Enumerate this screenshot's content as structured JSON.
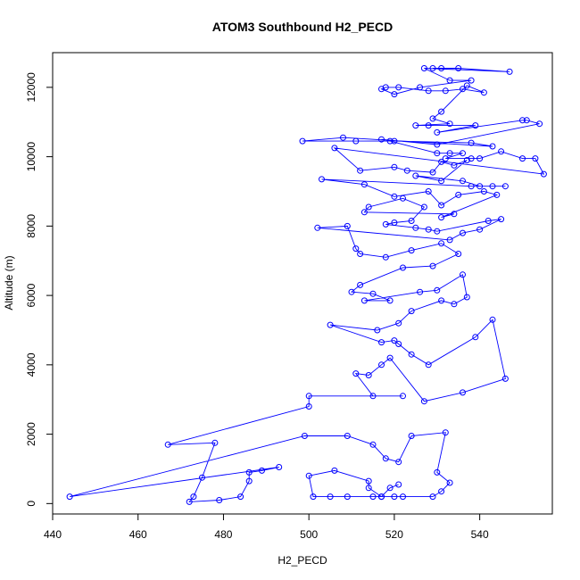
{
  "chart_data": {
    "type": "line",
    "title": "ATOM3 Southbound H2_PECD",
    "xlabel": "H2_PECD",
    "ylabel": "Altitude (m)",
    "xlim": [
      440,
      557
    ],
    "ylim": [
      -300,
      13000
    ],
    "x_ticks": [
      440,
      460,
      480,
      500,
      520,
      540
    ],
    "y_ticks": [
      0,
      2000,
      4000,
      6000,
      8000,
      10000,
      12000
    ],
    "series_color": "#0000ff",
    "marker": "open-circle",
    "grid": false,
    "legend": "none",
    "series": [
      {
        "points": [
          [
            529,
            12550
          ],
          [
            531,
            12550
          ],
          [
            535,
            12550
          ],
          [
            547,
            12450
          ],
          [
            527,
            12550
          ],
          [
            533,
            12200
          ],
          [
            538,
            12200
          ],
          [
            526,
            12000
          ],
          [
            520,
            11800
          ],
          [
            517,
            11950
          ],
          [
            518,
            12000
          ],
          [
            521,
            12000
          ],
          [
            528,
            11900
          ],
          [
            532,
            11900
          ],
          [
            536,
            11950
          ],
          [
            541,
            11850
          ],
          [
            537,
            12050
          ],
          [
            531,
            11300
          ],
          [
            529,
            11100
          ],
          [
            533,
            10950
          ],
          [
            525,
            10900
          ],
          [
            528,
            10900
          ],
          [
            539,
            10900
          ],
          [
            530,
            10700
          ],
          [
            550,
            11050
          ],
          [
            551,
            11050
          ],
          [
            554,
            10950
          ],
          [
            530,
            10350
          ],
          [
            517,
            10500
          ],
          [
            520,
            10450
          ],
          [
            538,
            10400
          ],
          [
            543,
            10300
          ],
          [
            508,
            10550
          ],
          [
            498.5,
            10450
          ],
          [
            511,
            10450
          ],
          [
            519,
            10450
          ],
          [
            530,
            10100
          ],
          [
            533,
            10100
          ],
          [
            536,
            10100
          ],
          [
            532,
            9950
          ],
          [
            538,
            9950
          ],
          [
            540,
            9950
          ],
          [
            545,
            10150
          ],
          [
            550,
            9950
          ],
          [
            553,
            9950
          ],
          [
            555,
            9500
          ],
          [
            506,
            10250
          ],
          [
            512,
            9600
          ],
          [
            520,
            9700
          ],
          [
            523,
            9600
          ],
          [
            529,
            9550
          ],
          [
            531,
            9850
          ],
          [
            534,
            9750
          ],
          [
            537,
            9900
          ],
          [
            531,
            9300
          ],
          [
            525,
            9450
          ],
          [
            536,
            9300
          ],
          [
            540,
            9150
          ],
          [
            543,
            9150
          ],
          [
            546,
            9150
          ],
          [
            538,
            9150
          ],
          [
            503,
            9350
          ],
          [
            513,
            9200
          ],
          [
            520,
            8850
          ],
          [
            528,
            9000
          ],
          [
            531,
            8600
          ],
          [
            535,
            8900
          ],
          [
            541,
            9000
          ],
          [
            544,
            8900
          ],
          [
            531,
            8250
          ],
          [
            534,
            8350
          ],
          [
            513,
            8400
          ],
          [
            514,
            8550
          ],
          [
            522,
            8800
          ],
          [
            527,
            8550
          ],
          [
            524,
            8150
          ],
          [
            520,
            8100
          ],
          [
            518,
            8050
          ],
          [
            525,
            7950
          ],
          [
            528,
            7900
          ],
          [
            530,
            7850
          ],
          [
            542,
            8150
          ],
          [
            545,
            8200
          ],
          [
            540,
            7900
          ],
          [
            536,
            7800
          ],
          [
            533,
            7600
          ],
          [
            502,
            7950
          ],
          [
            509,
            8000
          ],
          [
            511,
            7350
          ],
          [
            512,
            7200
          ],
          [
            518,
            7100
          ],
          [
            524,
            7300
          ],
          [
            531,
            7500
          ],
          [
            535,
            7200
          ],
          [
            529,
            6850
          ],
          [
            522,
            6800
          ],
          [
            512,
            6300
          ],
          [
            510,
            6100
          ],
          [
            515,
            6050
          ],
          [
            519,
            5850
          ],
          [
            513,
            5850
          ],
          [
            526,
            6100
          ],
          [
            530,
            6150
          ],
          [
            536,
            6600
          ],
          [
            537,
            5950
          ],
          [
            534,
            5750
          ],
          [
            531,
            5850
          ],
          [
            524,
            5550
          ],
          [
            521,
            5200
          ],
          [
            516,
            5000
          ],
          [
            505,
            5150
          ],
          [
            517,
            4650
          ],
          [
            520,
            4700
          ],
          [
            521,
            4600
          ],
          [
            524,
            4300
          ],
          [
            528,
            4000
          ],
          [
            539,
            4800
          ],
          [
            543,
            5300
          ],
          [
            546,
            3600
          ],
          [
            536,
            3200
          ],
          [
            527,
            2950
          ],
          [
            519,
            4200
          ],
          [
            517,
            4000
          ],
          [
            514,
            3700
          ],
          [
            511,
            3750
          ],
          [
            515,
            3100
          ],
          [
            522,
            3100
          ],
          [
            500,
            3100
          ],
          [
            500,
            2800
          ],
          [
            467,
            1700
          ],
          [
            478,
            1750
          ],
          [
            475,
            750
          ],
          [
            473,
            200
          ],
          [
            472,
            50
          ],
          [
            479,
            100
          ],
          [
            484,
            200
          ],
          [
            486,
            650
          ],
          [
            486,
            900
          ],
          [
            489,
            950
          ],
          [
            493,
            1050
          ],
          [
            444,
            200
          ],
          [
            499,
            1950
          ],
          [
            509,
            1950
          ],
          [
            515,
            1700
          ],
          [
            518,
            1300
          ],
          [
            521,
            1200
          ],
          [
            524,
            1950
          ],
          [
            532,
            2050
          ],
          [
            530,
            900
          ],
          [
            533,
            600
          ],
          [
            531,
            350
          ],
          [
            529,
            200
          ],
          [
            522,
            200
          ],
          [
            520,
            200
          ],
          [
            517,
            200
          ],
          [
            515,
            200
          ],
          [
            509,
            200
          ],
          [
            505,
            200
          ],
          [
            501,
            200
          ],
          [
            500,
            800
          ],
          [
            506,
            950
          ],
          [
            514,
            650
          ],
          [
            514,
            450
          ],
          [
            517,
            200
          ],
          [
            519,
            450
          ],
          [
            521,
            550
          ]
        ]
      }
    ]
  }
}
